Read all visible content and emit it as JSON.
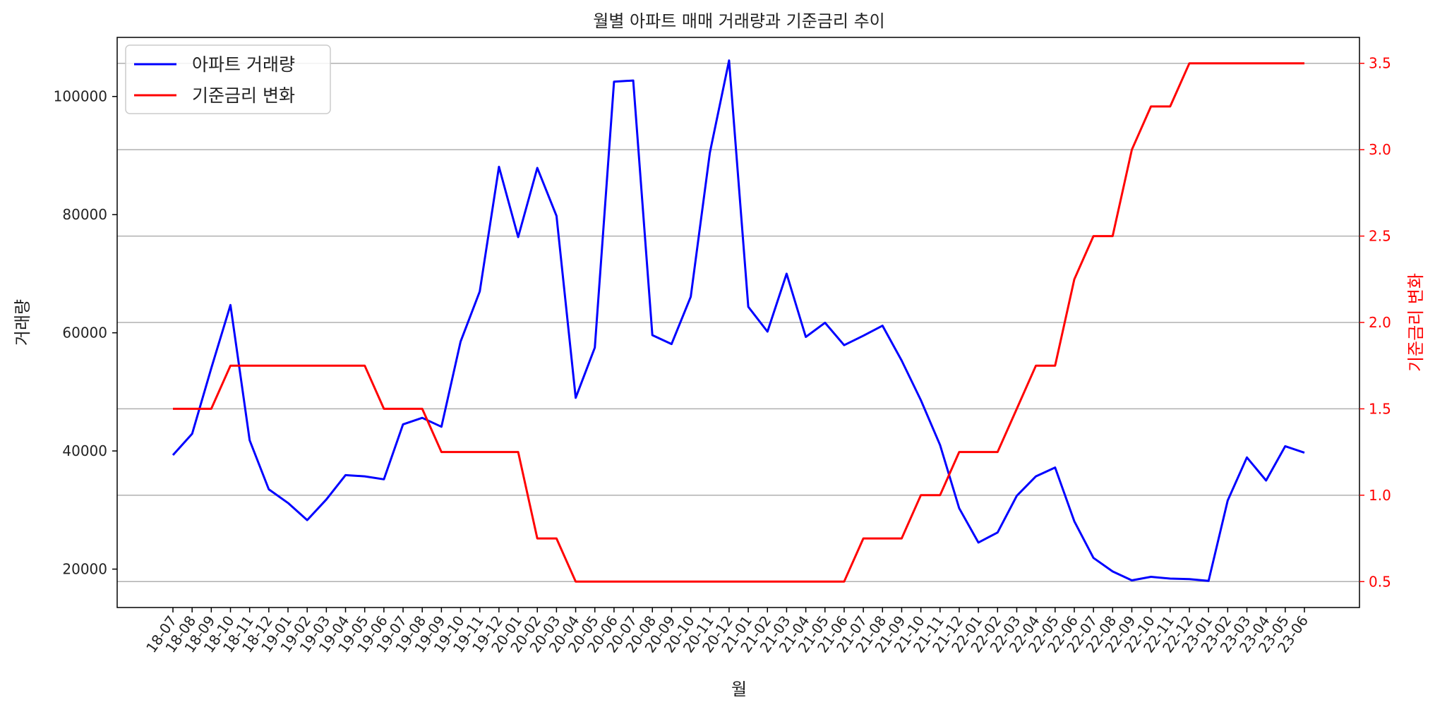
{
  "chart_data": {
    "type": "line",
    "title": "월별 아파트 매매 거래량과 기준금리 추이",
    "xlabel": "월",
    "ylabel_left": "거래량",
    "ylabel_right": "기준금리 변화",
    "ylim_left": [
      13500,
      110000
    ],
    "ylim_right": [
      0.35,
      3.65
    ],
    "yticks_left": [
      20000,
      40000,
      60000,
      80000,
      100000
    ],
    "yticks_right": [
      0.5,
      1.0,
      1.5,
      2.0,
      2.5,
      3.0,
      3.5
    ],
    "ytick_labels_left": [
      "20000",
      "40000",
      "60000",
      "80000",
      "100000"
    ],
    "ytick_labels_right": [
      "0.5",
      "1.0",
      "1.5",
      "2.0",
      "2.5",
      "3.0",
      "3.5"
    ],
    "grid": "horizontal (right axis ticks)",
    "legend_position": "top-left",
    "colors": {
      "volume": "#0000ff",
      "rate": "#ff0000",
      "grid": "#b0b0b0",
      "axis": "#000000"
    },
    "categories": [
      "18-07",
      "18-08",
      "18-09",
      "18-10",
      "18-11",
      "18-12",
      "19-01",
      "19-02",
      "19-03",
      "19-04",
      "19-05",
      "19-06",
      "19-07",
      "19-08",
      "19-09",
      "19-10",
      "19-11",
      "19-12",
      "20-01",
      "20-02",
      "20-03",
      "20-04",
      "20-05",
      "20-06",
      "20-07",
      "20-08",
      "20-09",
      "20-10",
      "20-11",
      "20-12",
      "21-01",
      "21-02",
      "21-03",
      "21-04",
      "21-05",
      "21-06",
      "21-07",
      "21-08",
      "21-09",
      "21-10",
      "21-11",
      "21-12",
      "22-01",
      "22-02",
      "22-03",
      "22-04",
      "22-05",
      "22-06",
      "22-07",
      "22-08",
      "22-09",
      "22-10",
      "22-11",
      "22-12",
      "23-01",
      "23-02",
      "23-03",
      "23-04",
      "23-05",
      "23-06"
    ],
    "series": [
      {
        "name": "아파트 거래량",
        "axis": "left",
        "color": "#0000ff",
        "values": [
          39300,
          42900,
          54000,
          64700,
          41800,
          33500,
          31200,
          28300,
          31800,
          35900,
          35700,
          35200,
          44500,
          45600,
          44100,
          58500,
          67000,
          88100,
          76200,
          87900,
          79800,
          49000,
          57500,
          102500,
          102700,
          59600,
          58100,
          66100,
          90500,
          106100,
          64400,
          60200,
          70000,
          59300,
          61700,
          57900,
          59500,
          61200,
          55300,
          48600,
          41000,
          30300,
          24500,
          26200,
          32400,
          35700,
          37200,
          28100,
          21900,
          19600,
          18100,
          18700,
          18400,
          18300,
          18000,
          31600,
          38900,
          35000,
          40800,
          39700
        ]
      },
      {
        "name": "기준금리 변화",
        "axis": "right",
        "color": "#ff0000",
        "values": [
          1.5,
          1.5,
          1.5,
          1.75,
          1.75,
          1.75,
          1.75,
          1.75,
          1.75,
          1.75,
          1.75,
          1.5,
          1.5,
          1.5,
          1.25,
          1.25,
          1.25,
          1.25,
          1.25,
          0.75,
          0.75,
          0.5,
          0.5,
          0.5,
          0.5,
          0.5,
          0.5,
          0.5,
          0.5,
          0.5,
          0.5,
          0.5,
          0.5,
          0.5,
          0.5,
          0.5,
          0.75,
          0.75,
          0.75,
          1.0,
          1.0,
          1.25,
          1.25,
          1.25,
          1.5,
          1.75,
          1.75,
          2.25,
          2.5,
          2.5,
          3.0,
          3.25,
          3.25,
          3.5,
          3.5,
          3.5,
          3.5,
          3.5,
          3.5,
          3.5
        ]
      }
    ]
  }
}
